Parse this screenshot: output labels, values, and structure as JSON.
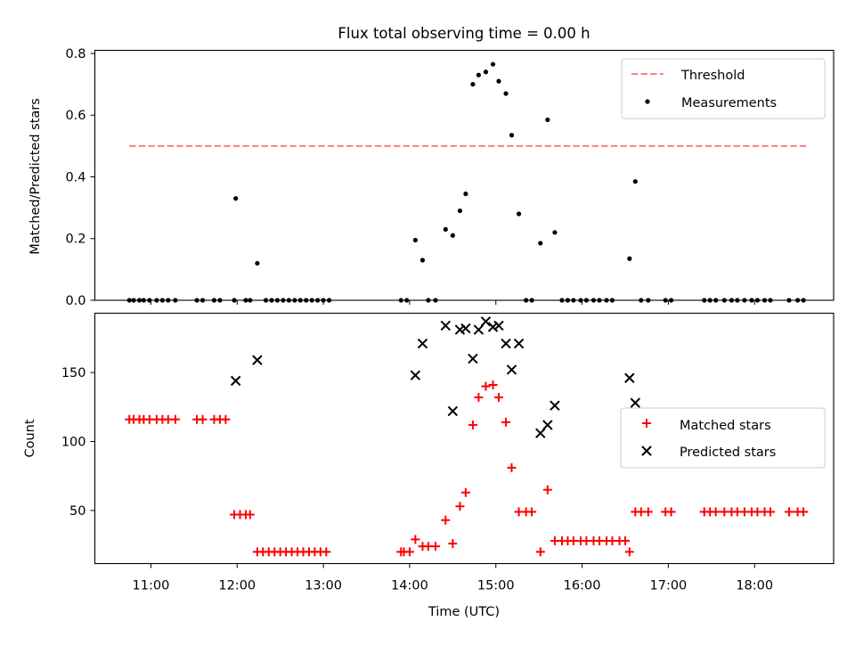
{
  "chart_data": [
    {
      "type": "scatter",
      "title": "Flux total observing time = 0.00 h",
      "ylabel": "Matched/Predicted stars",
      "xlabel": "",
      "xlim": [
        "10:21",
        "18:55"
      ],
      "ylim": [
        0,
        0.81
      ],
      "yticks": [
        0.0,
        0.2,
        0.4,
        0.6,
        0.8
      ],
      "ytick_labels": [
        "0.0",
        "0.2",
        "0.4",
        "0.6",
        "0.8"
      ],
      "xticks": [
        "11:00",
        "12:00",
        "13:00",
        "14:00",
        "15:00",
        "16:00",
        "17:00",
        "18:00"
      ],
      "grid": false,
      "legend_position": "top-right",
      "threshold": {
        "name": "Threshold",
        "value": 0.5,
        "color": "#ff7f7f",
        "x_range": [
          "10:45",
          "18:37"
        ]
      },
      "series": [
        {
          "name": "Measurements",
          "color": "#000000",
          "marker": "dot",
          "points": [
            [
              "10:45",
              0
            ],
            [
              "10:48",
              0
            ],
            [
              "10:52",
              0
            ],
            [
              "10:55",
              0
            ],
            [
              "10:59",
              0
            ],
            [
              "11:04",
              0
            ],
            [
              "11:08",
              0
            ],
            [
              "11:12",
              0
            ],
            [
              "11:17",
              0
            ],
            [
              "11:32",
              0
            ],
            [
              "11:36",
              0
            ],
            [
              "11:44",
              0
            ],
            [
              "11:48",
              0
            ],
            [
              "11:58",
              0
            ],
            [
              "11:59",
              0.33
            ],
            [
              "12:06",
              0
            ],
            [
              "12:09",
              0
            ],
            [
              "12:14",
              0.12
            ],
            [
              "12:20",
              0
            ],
            [
              "12:24",
              0
            ],
            [
              "12:28",
              0
            ],
            [
              "12:32",
              0
            ],
            [
              "12:36",
              0
            ],
            [
              "12:40",
              0
            ],
            [
              "12:44",
              0
            ],
            [
              "12:48",
              0
            ],
            [
              "12:52",
              0
            ],
            [
              "12:56",
              0
            ],
            [
              "13:00",
              0
            ],
            [
              "13:04",
              0
            ],
            [
              "13:54",
              0
            ],
            [
              "13:58",
              0
            ],
            [
              "14:04",
              0.195
            ],
            [
              "14:09",
              0.13
            ],
            [
              "14:13",
              0
            ],
            [
              "14:18",
              0
            ],
            [
              "14:25",
              0.23
            ],
            [
              "14:30",
              0.21
            ],
            [
              "14:35",
              0.29
            ],
            [
              "14:39",
              0.345
            ],
            [
              "14:44",
              0.7
            ],
            [
              "14:48",
              0.73
            ],
            [
              "14:53",
              0.74
            ],
            [
              "14:58",
              0.765
            ],
            [
              "15:02",
              0.71
            ],
            [
              "15:07",
              0.67
            ],
            [
              "15:11",
              0.535
            ],
            [
              "15:16",
              0.28
            ],
            [
              "15:21",
              0
            ],
            [
              "15:25",
              0
            ],
            [
              "15:31",
              0.185
            ],
            [
              "15:36",
              0.585
            ],
            [
              "15:41",
              0.22
            ],
            [
              "15:46",
              0
            ],
            [
              "15:50",
              0
            ],
            [
              "15:54",
              0
            ],
            [
              "15:59",
              0
            ],
            [
              "16:03",
              0
            ],
            [
              "16:08",
              0
            ],
            [
              "16:12",
              0
            ],
            [
              "16:17",
              0
            ],
            [
              "16:21",
              0
            ],
            [
              "16:33",
              0.135
            ],
            [
              "16:37",
              0.385
            ],
            [
              "16:41",
              0
            ],
            [
              "16:46",
              0
            ],
            [
              "16:58",
              0
            ],
            [
              "17:02",
              0
            ],
            [
              "17:25",
              0
            ],
            [
              "17:29",
              0
            ],
            [
              "17:33",
              0
            ],
            [
              "17:39",
              0
            ],
            [
              "17:44",
              0
            ],
            [
              "17:48",
              0
            ],
            [
              "17:53",
              0
            ],
            [
              "17:58",
              0
            ],
            [
              "18:02",
              0
            ],
            [
              "18:07",
              0
            ],
            [
              "18:11",
              0
            ],
            [
              "18:24",
              0
            ],
            [
              "18:30",
              0
            ],
            [
              "18:34",
              0
            ]
          ]
        }
      ]
    },
    {
      "type": "scatter",
      "title": "",
      "ylabel": "Count",
      "xlabel": "Time (UTC)",
      "xlim": [
        "10:21",
        "18:55"
      ],
      "ylim": [
        11.5,
        193
      ],
      "yticks": [
        50,
        100,
        150
      ],
      "ytick_labels": [
        "50",
        "100",
        "150"
      ],
      "xticks": [
        "11:00",
        "12:00",
        "13:00",
        "14:00",
        "15:00",
        "16:00",
        "17:00",
        "18:00"
      ],
      "grid": false,
      "legend_position": "right",
      "series": [
        {
          "name": "Matched stars",
          "color": "#ff0000",
          "marker": "plus",
          "points": [
            [
              "10:45",
              116
            ],
            [
              "10:48",
              116
            ],
            [
              "10:52",
              116
            ],
            [
              "10:55",
              116
            ],
            [
              "10:59",
              116
            ],
            [
              "11:04",
              116
            ],
            [
              "11:08",
              116
            ],
            [
              "11:12",
              116
            ],
            [
              "11:17",
              116
            ],
            [
              "11:32",
              116
            ],
            [
              "11:36",
              116
            ],
            [
              "11:44",
              116
            ],
            [
              "11:48",
              116
            ],
            [
              "11:52",
              116
            ],
            [
              "11:58",
              47
            ],
            [
              "12:02",
              47
            ],
            [
              "12:06",
              47
            ],
            [
              "12:09",
              47
            ],
            [
              "12:14",
              20
            ],
            [
              "12:18",
              20
            ],
            [
              "12:22",
              20
            ],
            [
              "12:26",
              20
            ],
            [
              "12:30",
              20
            ],
            [
              "12:34",
              20
            ],
            [
              "12:38",
              20
            ],
            [
              "12:42",
              20
            ],
            [
              "12:46",
              20
            ],
            [
              "12:50",
              20
            ],
            [
              "12:54",
              20
            ],
            [
              "12:58",
              20
            ],
            [
              "13:02",
              20
            ],
            [
              "13:54",
              20
            ],
            [
              "13:56",
              20
            ],
            [
              "14:00",
              20
            ],
            [
              "14:04",
              29
            ],
            [
              "14:09",
              24
            ],
            [
              "14:13",
              24
            ],
            [
              "14:18",
              24
            ],
            [
              "14:25",
              43
            ],
            [
              "14:30",
              26
            ],
            [
              "14:35",
              53
            ],
            [
              "14:39",
              63
            ],
            [
              "14:44",
              112
            ],
            [
              "14:48",
              132
            ],
            [
              "14:53",
              140
            ],
            [
              "14:58",
              141
            ],
            [
              "15:02",
              132
            ],
            [
              "15:07",
              114
            ],
            [
              "15:11",
              81
            ],
            [
              "15:16",
              49
            ],
            [
              "15:21",
              49
            ],
            [
              "15:25",
              49
            ],
            [
              "15:31",
              20
            ],
            [
              "15:36",
              65
            ],
            [
              "15:41",
              28
            ],
            [
              "15:46",
              28
            ],
            [
              "15:50",
              28
            ],
            [
              "15:54",
              28
            ],
            [
              "15:59",
              28
            ],
            [
              "16:03",
              28
            ],
            [
              "16:08",
              28
            ],
            [
              "16:12",
              28
            ],
            [
              "16:17",
              28
            ],
            [
              "16:21",
              28
            ],
            [
              "16:26",
              28
            ],
            [
              "16:30",
              28
            ],
            [
              "16:33",
              20
            ],
            [
              "16:37",
              49
            ],
            [
              "16:41",
              49
            ],
            [
              "16:46",
              49
            ],
            [
              "16:58",
              49
            ],
            [
              "17:02",
              49
            ],
            [
              "17:25",
              49
            ],
            [
              "17:29",
              49
            ],
            [
              "17:33",
              49
            ],
            [
              "17:39",
              49
            ],
            [
              "17:44",
              49
            ],
            [
              "17:48",
              49
            ],
            [
              "17:53",
              49
            ],
            [
              "17:58",
              49
            ],
            [
              "18:02",
              49
            ],
            [
              "18:07",
              49
            ],
            [
              "18:11",
              49
            ],
            [
              "18:24",
              49
            ],
            [
              "18:30",
              49
            ],
            [
              "18:34",
              49
            ]
          ]
        },
        {
          "name": "Predicted stars",
          "color": "#000000",
          "marker": "x",
          "points": [
            [
              "11:59",
              144
            ],
            [
              "12:14",
              159
            ],
            [
              "14:04",
              148
            ],
            [
              "14:09",
              171
            ],
            [
              "14:25",
              184
            ],
            [
              "14:30",
              122
            ],
            [
              "14:35",
              181
            ],
            [
              "14:39",
              182
            ],
            [
              "14:44",
              160
            ],
            [
              "14:48",
              181
            ],
            [
              "14:53",
              187
            ],
            [
              "14:58",
              183
            ],
            [
              "15:02",
              184
            ],
            [
              "15:07",
              171
            ],
            [
              "15:11",
              152
            ],
            [
              "15:16",
              171
            ],
            [
              "15:31",
              106
            ],
            [
              "15:36",
              112
            ],
            [
              "15:41",
              126
            ],
            [
              "16:33",
              146
            ],
            [
              "16:37",
              128
            ]
          ]
        }
      ]
    }
  ]
}
